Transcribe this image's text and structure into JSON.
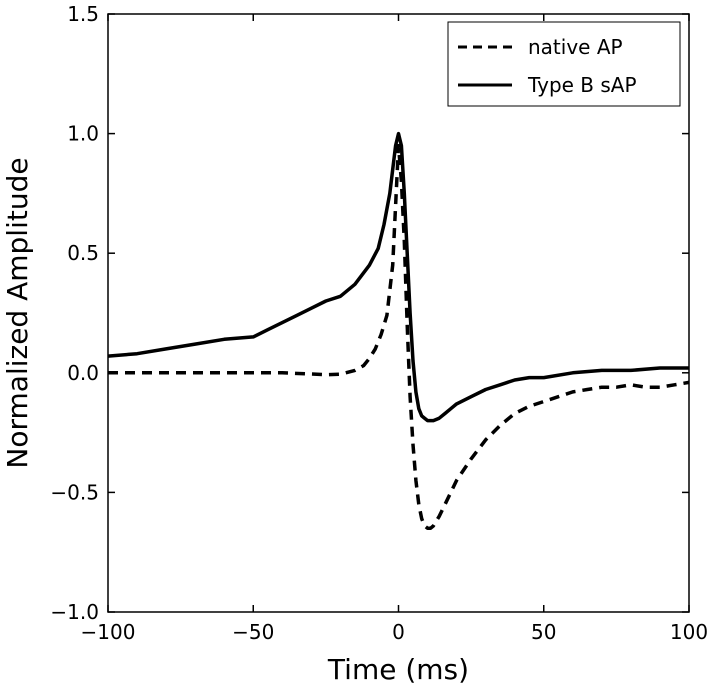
{
  "chart_data": {
    "type": "line",
    "xlabel": "Time (ms)",
    "ylabel": "Normalized Amplitude",
    "xlim": [
      -100,
      100
    ],
    "ylim": [
      -1.0,
      1.5
    ],
    "xticks": [
      -100,
      -50,
      0,
      50,
      100
    ],
    "xtick_labels": [
      "−100",
      "−50",
      "0",
      "50",
      "100"
    ],
    "yticks": [
      -1.0,
      -0.5,
      0.0,
      0.5,
      1.0,
      1.5
    ],
    "ytick_labels": [
      "−1.0",
      "−0.5",
      "0.0",
      "0.5",
      "1.0",
      "1.5"
    ],
    "grid": false,
    "legend_position": "top-right",
    "series": [
      {
        "name": "native AP",
        "style": "dashed",
        "color": "#000000",
        "x": [
          -100,
          -80,
          -60,
          -40,
          -30,
          -25,
          -20,
          -15,
          -12,
          -10,
          -8,
          -6,
          -4,
          -2,
          -1,
          0,
          1,
          2,
          3,
          4,
          5,
          6,
          7,
          8,
          9,
          10,
          11,
          12,
          14,
          16,
          18,
          20,
          25,
          30,
          35,
          40,
          45,
          50,
          55,
          60,
          65,
          70,
          75,
          80,
          85,
          90,
          95,
          100
        ],
        "y": [
          0.0,
          0.0,
          0.0,
          0.0,
          -0.005,
          -0.008,
          -0.006,
          0.01,
          0.03,
          0.06,
          0.1,
          0.16,
          0.24,
          0.45,
          0.7,
          0.95,
          0.8,
          0.55,
          0.2,
          -0.1,
          -0.3,
          -0.45,
          -0.55,
          -0.61,
          -0.64,
          -0.65,
          -0.65,
          -0.64,
          -0.6,
          -0.55,
          -0.5,
          -0.45,
          -0.36,
          -0.28,
          -0.22,
          -0.17,
          -0.14,
          -0.12,
          -0.1,
          -0.08,
          -0.07,
          -0.06,
          -0.06,
          -0.05,
          -0.06,
          -0.06,
          -0.05,
          -0.04
        ]
      },
      {
        "name": "Type B sAP",
        "style": "solid",
        "color": "#000000",
        "x": [
          -100,
          -90,
          -80,
          -70,
          -60,
          -50,
          -45,
          -40,
          -35,
          -30,
          -25,
          -20,
          -15,
          -10,
          -7,
          -5,
          -3,
          -2,
          -1,
          0,
          1,
          2,
          3,
          4,
          5,
          6,
          7,
          8,
          9,
          10,
          11,
          12,
          14,
          16,
          18,
          20,
          25,
          30,
          35,
          40,
          45,
          50,
          60,
          70,
          80,
          90,
          100
        ],
        "y": [
          0.07,
          0.08,
          0.1,
          0.12,
          0.14,
          0.15,
          0.18,
          0.21,
          0.24,
          0.27,
          0.3,
          0.32,
          0.37,
          0.45,
          0.52,
          0.62,
          0.75,
          0.85,
          0.95,
          1.0,
          0.95,
          0.75,
          0.5,
          0.25,
          0.05,
          -0.08,
          -0.15,
          -0.18,
          -0.19,
          -0.2,
          -0.2,
          -0.2,
          -0.19,
          -0.17,
          -0.15,
          -0.13,
          -0.1,
          -0.07,
          -0.05,
          -0.03,
          -0.02,
          -0.02,
          0.0,
          0.01,
          0.01,
          0.02,
          0.02
        ]
      }
    ]
  }
}
